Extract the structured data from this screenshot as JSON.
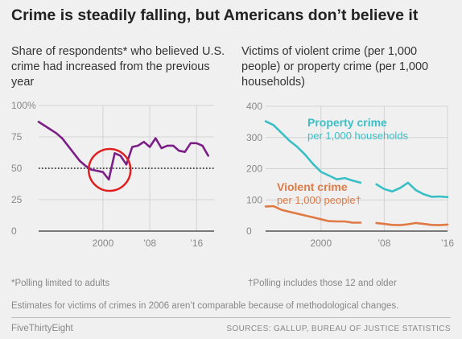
{
  "title": "Crime is steadily falling, but Americans don’t believe it",
  "colors": {
    "poll": "#7b1f86",
    "property": "#3bbfc6",
    "violent": "#e07a45",
    "circle": "#e02020",
    "grid": "#d3d3d3",
    "tick_text": "#888888",
    "axis": "#333333"
  },
  "footnote_left": "*Polling limited to adults",
  "footnote_right": "†Polling includes those 12 and older",
  "note": "Estimates for victims of crimes in 2006 aren’t comparable because of methodological changes.",
  "brand": "FiveThirtyEight",
  "sources": "SOURCES: GALLUP, BUREAU OF JUSTICE STATISTICS",
  "chart_data": [
    {
      "type": "line",
      "title": "Share of respondents* who believed U.S. crime had increased from the previous year",
      "xlim": [
        1989,
        2019
      ],
      "x_ticks": [
        2000,
        2008,
        2016
      ],
      "x_tick_labels": [
        "2000",
        "’08",
        "’16"
      ],
      "ylim": [
        0,
        100
      ],
      "y_ticks": [
        0,
        25,
        50,
        75,
        100
      ],
      "y_tick_labels": [
        "0",
        "25",
        "50",
        "75",
        "100%"
      ],
      "grid": true,
      "reference_line": {
        "y": 50,
        "style": "dotted"
      },
      "highlight": {
        "type": "circle",
        "x": 2001,
        "y": 41
      },
      "series": [
        {
          "x": [
            1989,
            1990,
            1992,
            1993,
            1996,
            1997,
            1998,
            2000,
            2001,
            2002,
            2003,
            2004,
            2005,
            2006,
            2007,
            2008,
            2009,
            2010,
            2011,
            2012,
            2013,
            2014,
            2015,
            2016,
            2017,
            2018
          ],
          "values": [
            87,
            84,
            78,
            74,
            56,
            52,
            49,
            47,
            41,
            62,
            60,
            53,
            67,
            68,
            71,
            67,
            74,
            66,
            68,
            68,
            64,
            63,
            70,
            70,
            68,
            60
          ]
        }
      ]
    },
    {
      "type": "line",
      "title": "Victims of violent crime (per 1,000 people) or property crime (per 1,000 households)",
      "xlim": [
        1993,
        2016
      ],
      "x_ticks": [
        2000,
        2008,
        2016
      ],
      "x_tick_labels": [
        "2000",
        "’08",
        "’16"
      ],
      "ylim": [
        0,
        400
      ],
      "y_ticks": [
        0,
        100,
        200,
        300,
        400
      ],
      "y_tick_labels": [
        "0",
        "100",
        "200",
        "300",
        "400"
      ],
      "grid": true,
      "series": [
        {
          "name": "Property crime",
          "label_sub": "per 1,000 households",
          "segments": [
            {
              "x": [
                1993,
                1994,
                1995,
                1996,
                1997,
                1998,
                1999,
                2000,
                2001,
                2002,
                2003,
                2004,
                2005
              ],
              "values": [
                352,
                340,
                315,
                290,
                270,
                245,
                215,
                190,
                178,
                166,
                170,
                162,
                155
              ]
            },
            {
              "x": [
                2007,
                2008,
                2009,
                2010,
                2011,
                2012,
                2013,
                2014,
                2015,
                2016
              ],
              "values": [
                150,
                135,
                127,
                138,
                155,
                131,
                118,
                110,
                111,
                109
              ]
            }
          ]
        },
        {
          "name": "Violent crime",
          "label_sub": "per 1,000 people†",
          "segments": [
            {
              "x": [
                1993,
                1994,
                1995,
                1996,
                1997,
                1998,
                1999,
                2000,
                2001,
                2002,
                2003,
                2004,
                2005
              ],
              "values": [
                79,
                80,
                68,
                62,
                56,
                50,
                44,
                38,
                32,
                31,
                31,
                27,
                27
              ]
            },
            {
              "x": [
                2007,
                2008,
                2009,
                2010,
                2011,
                2012,
                2013,
                2014,
                2015,
                2016
              ],
              "values": [
                26,
                23,
                20,
                19,
                22,
                26,
                23,
                20,
                19,
                21
              ]
            }
          ]
        }
      ]
    }
  ]
}
